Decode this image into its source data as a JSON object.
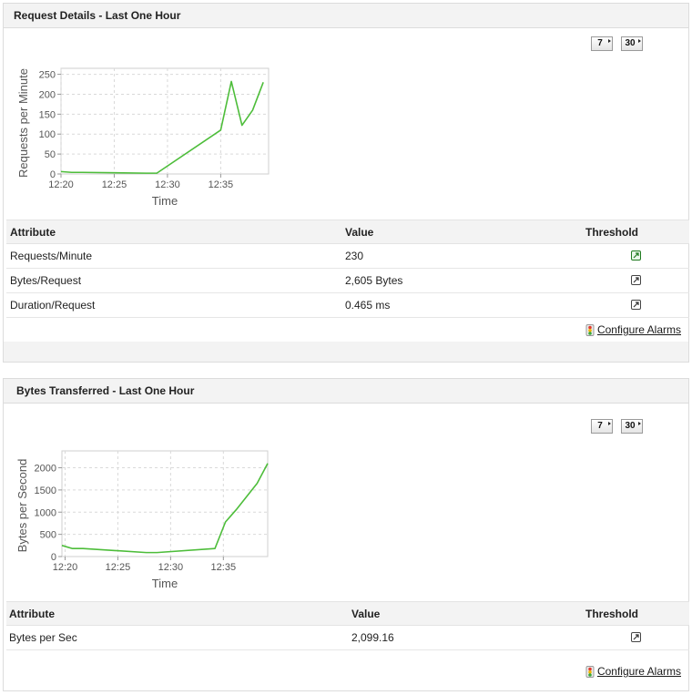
{
  "panels": [
    {
      "title": "Request Details - Last One Hour",
      "buttons": {
        "seven": "7",
        "thirty": "30"
      },
      "table": {
        "headers": {
          "attribute": "Attribute",
          "value": "Value",
          "threshold": "Threshold"
        },
        "rows": [
          {
            "attribute": "Requests/Minute",
            "value": "230",
            "threshold_icon": "threshold-configured-icon"
          },
          {
            "attribute": "Bytes/Request",
            "value": "2,605 Bytes",
            "threshold_icon": "threshold-icon"
          },
          {
            "attribute": "Duration/Request",
            "value": "0.465 ms",
            "threshold_icon": "threshold-icon"
          }
        ]
      },
      "configure_alarms": "Configure Alarms"
    },
    {
      "title": "Bytes Transferred - Last One Hour",
      "buttons": {
        "seven": "7",
        "thirty": "30"
      },
      "table": {
        "headers": {
          "attribute": "Attribute",
          "value": "Value",
          "threshold": "Threshold"
        },
        "rows": [
          {
            "attribute": "Bytes per Sec",
            "value": "2,099.16",
            "threshold_icon": "threshold-icon"
          }
        ]
      },
      "configure_alarms": "Configure Alarms"
    }
  ],
  "colors": {
    "series_line": "#4dbd3a",
    "grid": "#d9d9d9",
    "header_bg": "#f3f3f3"
  },
  "chart_data": [
    {
      "type": "line",
      "xlabel": "Time",
      "ylabel": "Requests per Minute",
      "xticks": [
        "12:20",
        "12:25",
        "12:30",
        "12:35"
      ],
      "yticks": [
        0,
        50,
        100,
        150,
        200,
        250
      ],
      "xlim": [
        0,
        19.5
      ],
      "ylim": [
        0,
        265
      ],
      "x": [
        0,
        1,
        2,
        8,
        9,
        15,
        16,
        17,
        18,
        19
      ],
      "y": [
        6,
        4,
        4,
        2,
        2,
        110,
        232,
        122,
        160,
        230
      ],
      "grid": true
    },
    {
      "type": "line",
      "xlabel": "Time",
      "ylabel": "Bytes per Second",
      "xticks": [
        "12:20",
        "12:25",
        "12:30",
        "12:35"
      ],
      "yticks": [
        0,
        500,
        1000,
        1500,
        2000
      ],
      "xlim": [
        0,
        19.5
      ],
      "ylim": [
        0,
        2380
      ],
      "x": [
        0,
        1,
        2,
        8,
        9,
        14.5,
        15.5,
        16.5,
        18.5,
        19.5
      ],
      "y": [
        250,
        180,
        180,
        90,
        90,
        180,
        780,
        1050,
        1650,
        2099
      ],
      "grid": true
    }
  ]
}
